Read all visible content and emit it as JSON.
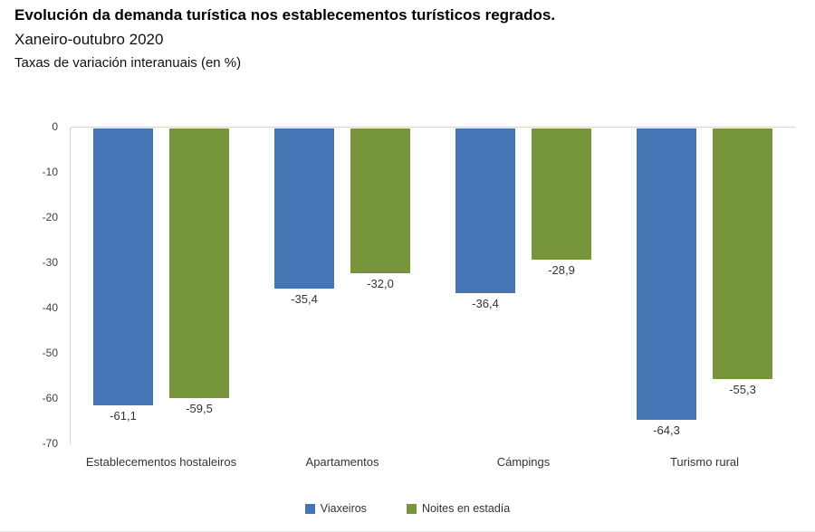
{
  "header": {
    "title": "Evolución da demanda turística nos establecementos turísticos regrados.",
    "subtitle": "Xaneiro-outubro 2020",
    "units_note": "Taxas de variación interanuais (en %)"
  },
  "chart_data": {
    "type": "bar",
    "orientation": "vertical",
    "title": "Evolución da demanda turística nos establecementos turísticos regrados. Xaneiro-outubro 2020",
    "ylabel": "Taxas de variación interanuais (en %)",
    "categories": [
      "Establecementos hostaleiros",
      "Apartamentos",
      "Cámpings",
      "Turismo rural"
    ],
    "series": [
      {
        "name": "Viaxeiros",
        "color": "#4575B4",
        "values": [
          -61.1,
          -35.4,
          -36.4,
          -64.3
        ],
        "labels": [
          "-61,1",
          "-35,4",
          "-36,4",
          "-64,3"
        ]
      },
      {
        "name": "Noites en estadía",
        "color": "#77963B",
        "values": [
          -59.5,
          -32.0,
          -28.9,
          -55.3
        ],
        "labels": [
          "-59,5",
          "-32,0",
          "-28,9",
          "-55,3"
        ]
      }
    ],
    "ylim": [
      -70,
      0
    ],
    "ytick_values": [
      0,
      -10,
      -20,
      -30,
      -40,
      -50,
      -60,
      -70
    ],
    "ytick_labels": [
      "0",
      "-10",
      "-20",
      "-30",
      "-40",
      "-50",
      "-60",
      "-70"
    ],
    "grid": false,
    "zero_line": true,
    "legend_position": "bottom",
    "axis_color": "#D6D6D6",
    "label_color": "#333333"
  }
}
